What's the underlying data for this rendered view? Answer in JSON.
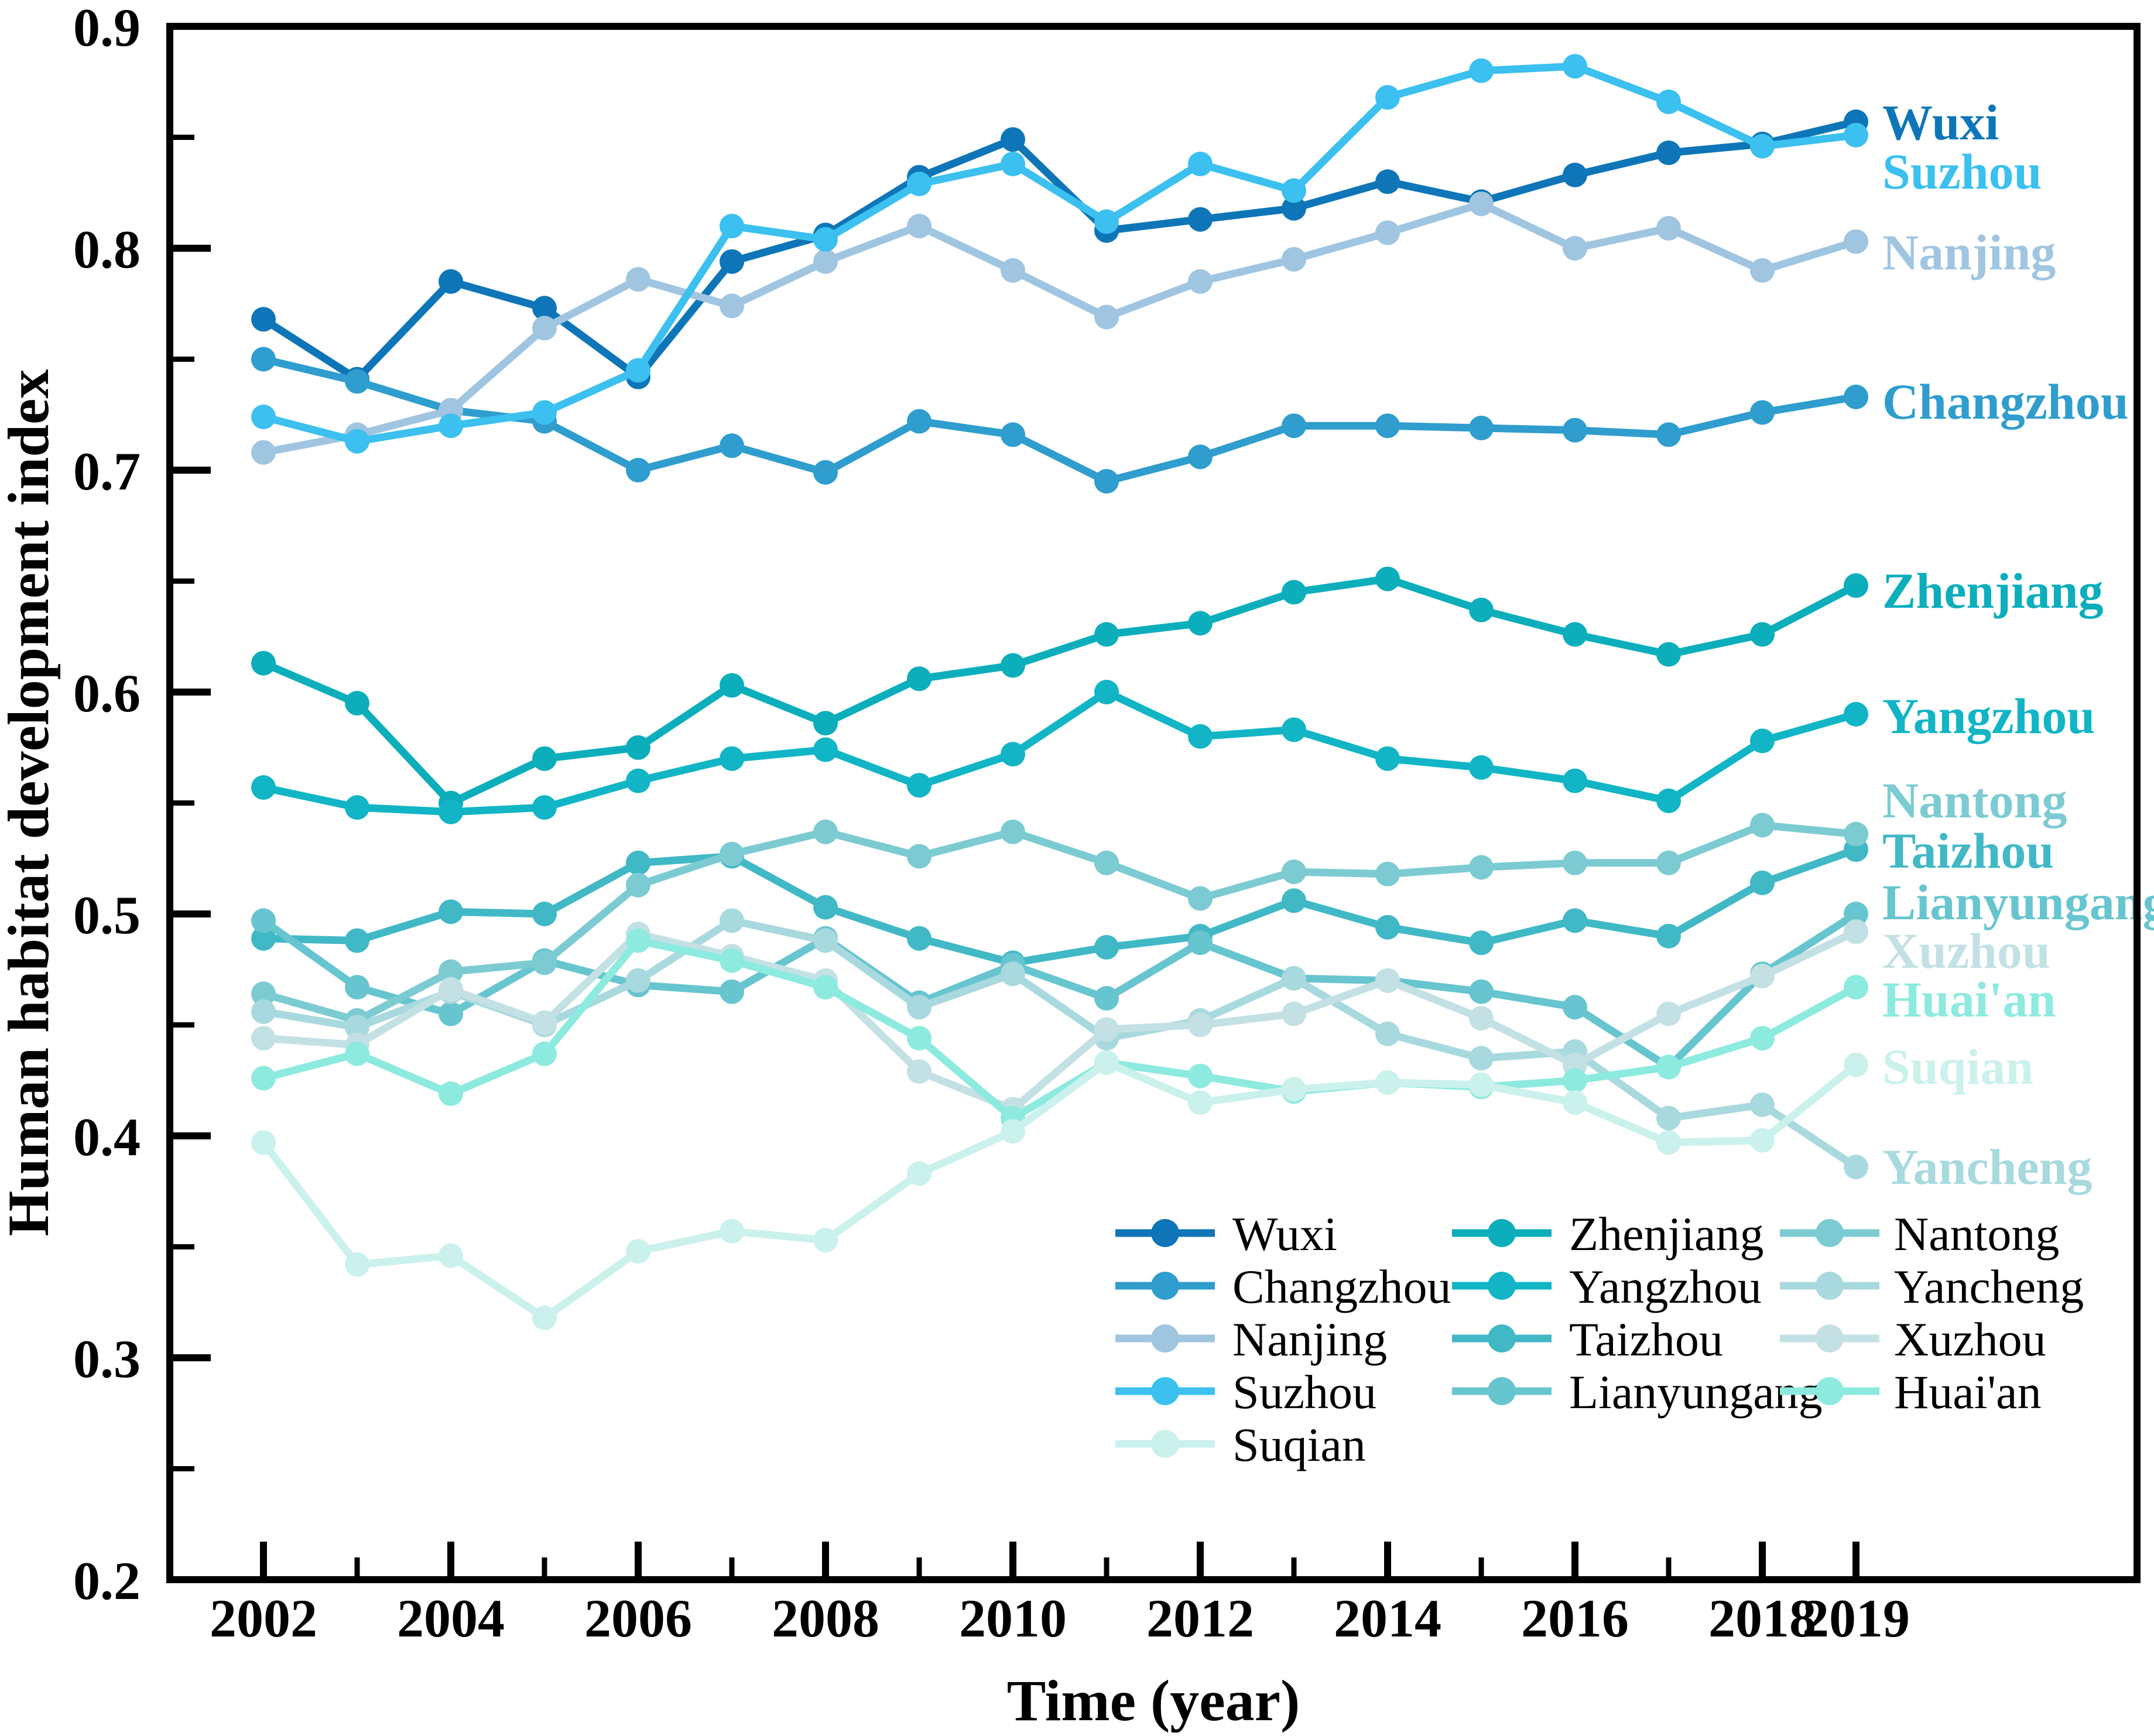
{
  "figure": {
    "x_title": "Time (year)",
    "y_title": "Human habitat development index"
  },
  "chart_data": {
    "type": "line",
    "x": [
      2002,
      2003,
      2004,
      2005,
      2006,
      2007,
      2008,
      2009,
      2010,
      2011,
      2012,
      2013,
      2014,
      2015,
      2016,
      2017,
      2018,
      2019
    ],
    "x_tick_labels": [
      2002,
      2004,
      2006,
      2008,
      2010,
      2012,
      2014,
      2016,
      2018,
      2019
    ],
    "xlabel": "Time (year)",
    "ylabel": "Human habitat development index",
    "ylim": [
      0.2,
      0.9
    ],
    "y_major_tick_step": 0.1,
    "y_minor_tick_step": 0.05,
    "grid": false,
    "legend_position": "lower-right-inside",
    "frame": true,
    "series": [
      {
        "name": "Wuxi",
        "color": "#0e76b8",
        "label_y": 208,
        "values": [
          0.768,
          0.741,
          0.785,
          0.773,
          0.742,
          0.794,
          0.806,
          0.832,
          0.849,
          0.808,
          0.813,
          0.818,
          0.83,
          0.821,
          0.833,
          0.843,
          0.847,
          0.857
        ]
      },
      {
        "name": "Changzhou",
        "color": "#2f9dce",
        "label_y": 685,
        "values": [
          0.75,
          0.74,
          0.727,
          0.722,
          0.7,
          0.711,
          0.699,
          0.722,
          0.716,
          0.695,
          0.706,
          0.72,
          0.72,
          0.719,
          0.718,
          0.716,
          0.726,
          0.733
        ]
      },
      {
        "name": "Nanjing",
        "color": "#9fc5e1",
        "label_y": 430,
        "values": [
          0.708,
          0.716,
          0.727,
          0.764,
          0.786,
          0.774,
          0.794,
          0.81,
          0.79,
          0.769,
          0.785,
          0.795,
          0.807,
          0.82,
          0.8,
          0.809,
          0.79,
          0.803
        ]
      },
      {
        "name": "Suzhou",
        "color": "#3bc0ef",
        "label_y": 292,
        "values": [
          0.724,
          0.713,
          0.72,
          0.726,
          0.745,
          0.81,
          0.804,
          0.829,
          0.838,
          0.812,
          0.838,
          0.826,
          0.868,
          0.88,
          0.882,
          0.866,
          0.846,
          0.851
        ]
      },
      {
        "name": "Zhenjiang",
        "color": "#0caebc",
        "label_y": 1008,
        "values": [
          0.613,
          0.595,
          0.55,
          0.57,
          0.575,
          0.603,
          0.586,
          0.606,
          0.612,
          0.626,
          0.631,
          0.645,
          0.651,
          0.637,
          0.626,
          0.617,
          0.626,
          0.648
        ]
      },
      {
        "name": "Yangzhou",
        "color": "#11b5c5",
        "label_y": 1222,
        "values": [
          0.557,
          0.548,
          0.546,
          0.548,
          0.56,
          0.57,
          0.574,
          0.558,
          0.572,
          0.6,
          0.58,
          0.583,
          0.57,
          0.566,
          0.56,
          0.551,
          0.578,
          0.59
        ]
      },
      {
        "name": "Taizhou",
        "color": "#41b8c6",
        "label_y": 1452,
        "values": [
          0.489,
          0.488,
          0.501,
          0.5,
          0.523,
          0.526,
          0.503,
          0.489,
          0.478,
          0.485,
          0.49,
          0.506,
          0.494,
          0.487,
          0.497,
          0.49,
          0.514,
          0.529
        ]
      },
      {
        "name": "Lianyungang",
        "color": "#67c5cf",
        "label_y": 1540,
        "values": [
          0.497,
          0.467,
          0.455,
          0.479,
          0.468,
          0.465,
          0.489,
          0.46,
          0.477,
          0.462,
          0.487,
          0.471,
          0.47,
          0.465,
          0.458,
          0.431,
          0.473,
          0.5
        ]
      },
      {
        "name": "Nantong",
        "color": "#7ccbd2",
        "label_y": 1366,
        "values": [
          0.464,
          0.452,
          0.474,
          0.478,
          0.513,
          0.527,
          0.537,
          0.526,
          0.537,
          0.523,
          0.507,
          0.519,
          0.518,
          0.521,
          0.523,
          0.523,
          0.54,
          0.536
        ]
      },
      {
        "name": "Yancheng",
        "color": "#a8d9de",
        "label_y": 1992,
        "values": [
          0.456,
          0.449,
          0.465,
          0.45,
          0.47,
          0.497,
          0.488,
          0.458,
          0.473,
          0.444,
          0.452,
          0.471,
          0.446,
          0.435,
          0.438,
          0.408,
          0.414,
          0.386
        ]
      },
      {
        "name": "Xuzhou",
        "color": "#c3e1e5",
        "label_y": 1623,
        "values": [
          0.444,
          0.441,
          0.466,
          0.451,
          0.491,
          0.481,
          0.47,
          0.429,
          0.412,
          0.448,
          0.45,
          0.455,
          0.47,
          0.453,
          0.432,
          0.455,
          0.472,
          0.492
        ]
      },
      {
        "name": "Huai'an",
        "color": "#8deadf",
        "label_y": 1706,
        "values": [
          0.426,
          0.437,
          0.419,
          0.437,
          0.488,
          0.479,
          0.467,
          0.444,
          0.408,
          0.433,
          0.427,
          0.42,
          0.424,
          0.422,
          0.425,
          0.431,
          0.444,
          0.467
        ]
      },
      {
        "name": "Suqian",
        "color": "#cbf1ec",
        "label_y": 1821,
        "values": [
          0.397,
          0.342,
          0.346,
          0.318,
          0.348,
          0.357,
          0.353,
          0.383,
          0.402,
          0.433,
          0.415,
          0.421,
          0.424,
          0.423,
          0.415,
          0.397,
          0.398,
          0.432
        ]
      }
    ],
    "legend_columns": [
      [
        "Wuxi",
        "Changzhou",
        "Nanjing",
        "Suzhou",
        "Suqian"
      ],
      [
        "Zhenjiang",
        "Yangzhou",
        "Taizhou",
        "Lianyungang"
      ],
      [
        "Nantong",
        "Yancheng",
        "Xuzhou",
        "Huai'an"
      ]
    ]
  }
}
